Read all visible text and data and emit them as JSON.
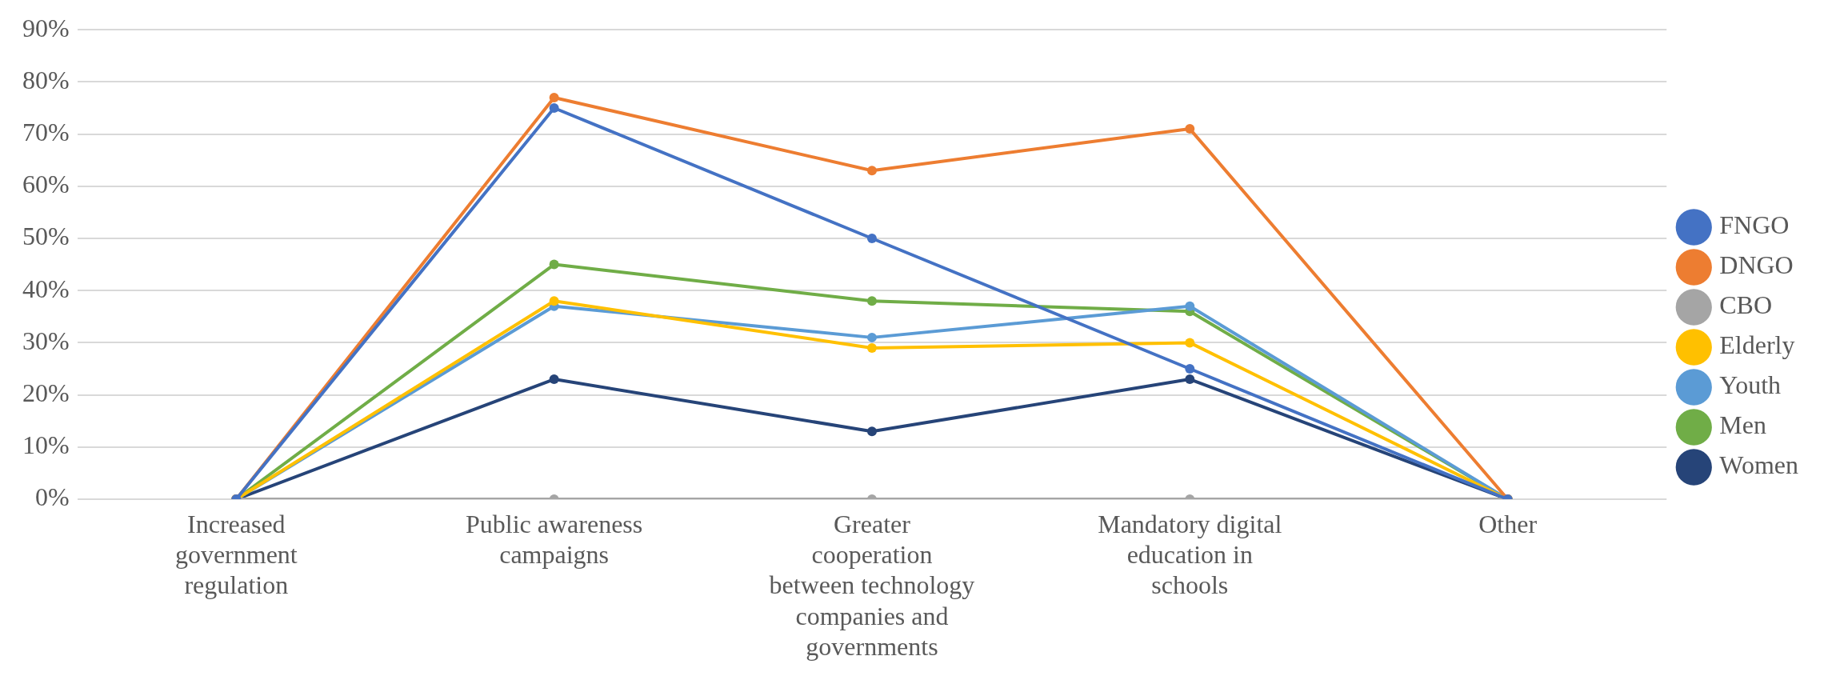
{
  "chart_data": {
    "type": "line",
    "categories": [
      "Increased government regulation",
      "Public awareness campaigns",
      "Greater cooperation between technology companies and governments",
      "Mandatory digital education in schools",
      "Other"
    ],
    "series": [
      {
        "name": "FNGO",
        "color": "#4472c4",
        "values": [
          0,
          75,
          50,
          25,
          0
        ]
      },
      {
        "name": "DNGO",
        "color": "#ed7d31",
        "values": [
          0,
          77,
          63,
          71,
          0
        ]
      },
      {
        "name": "CBO",
        "color": "#a5a5a5",
        "values": [
          0,
          0,
          0,
          0,
          0
        ]
      },
      {
        "name": "Elderly",
        "color": "#ffc000",
        "values": [
          0,
          38,
          29,
          30,
          0
        ]
      },
      {
        "name": "Youth",
        "color": "#5b9bd5",
        "values": [
          0,
          37,
          31,
          37,
          0
        ]
      },
      {
        "name": "Men",
        "color": "#70ad47",
        "values": [
          0,
          45,
          38,
          36,
          0
        ]
      },
      {
        "name": "Women",
        "color": "#264478",
        "values": [
          0,
          23,
          13,
          23,
          0
        ]
      }
    ],
    "ylim": [
      0,
      90
    ],
    "yticks": [
      {
        "value": 0,
        "label": "0%"
      },
      {
        "value": 10,
        "label": "10%"
      },
      {
        "value": 20,
        "label": "20%"
      },
      {
        "value": 30,
        "label": "30%"
      },
      {
        "value": 40,
        "label": "40%"
      },
      {
        "value": 50,
        "label": "50%"
      },
      {
        "value": 60,
        "label": "60%"
      },
      {
        "value": 70,
        "label": "70%"
      },
      {
        "value": 80,
        "label": "80%"
      },
      {
        "value": 90,
        "label": "90%"
      }
    ],
    "grid": "y",
    "legend": "right",
    "marker": "circle",
    "line_style": "solid"
  }
}
